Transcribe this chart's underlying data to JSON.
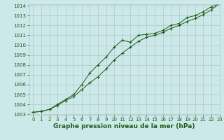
{
  "x": [
    0,
    1,
    2,
    3,
    4,
    5,
    6,
    7,
    8,
    9,
    10,
    11,
    12,
    13,
    14,
    15,
    16,
    17,
    18,
    19,
    20,
    21,
    22,
    23
  ],
  "line1": [
    1003.2,
    1003.3,
    1003.5,
    1004.0,
    1004.5,
    1005.0,
    1006.0,
    1007.2,
    1008.0,
    1008.8,
    1009.8,
    1010.5,
    1010.3,
    1011.0,
    1011.1,
    1011.2,
    1011.5,
    1012.0,
    1012.2,
    1012.8,
    1013.0,
    1013.4,
    1013.9,
    1014.2
  ],
  "line2": [
    1003.2,
    1003.3,
    1003.5,
    1003.9,
    1004.4,
    1004.8,
    1005.5,
    1006.2,
    1006.8,
    1007.6,
    1008.5,
    1009.2,
    1009.8,
    1010.4,
    1010.8,
    1011.0,
    1011.3,
    1011.7,
    1012.0,
    1012.4,
    1012.7,
    1013.1,
    1013.6,
    1014.2
  ],
  "ylim": [
    1003,
    1014
  ],
  "xlim": [
    -0.5,
    23
  ],
  "yticks": [
    1003,
    1004,
    1005,
    1006,
    1007,
    1008,
    1009,
    1010,
    1011,
    1012,
    1013,
    1014
  ],
  "xticks": [
    0,
    1,
    2,
    3,
    4,
    5,
    6,
    7,
    8,
    9,
    10,
    11,
    12,
    13,
    14,
    15,
    16,
    17,
    18,
    19,
    20,
    21,
    22,
    23
  ],
  "line_color": "#1a5c1a",
  "marker_color": "#1a5c1a",
  "bg_color": "#cce8e8",
  "grid_color": "#b0c8c8",
  "xlabel": "Graphe pression niveau de la mer (hPa)",
  "xlabel_color": "#1a5c1a",
  "tick_color": "#1a5c1a",
  "tick_fontsize": 5,
  "xlabel_fontsize": 6.5
}
